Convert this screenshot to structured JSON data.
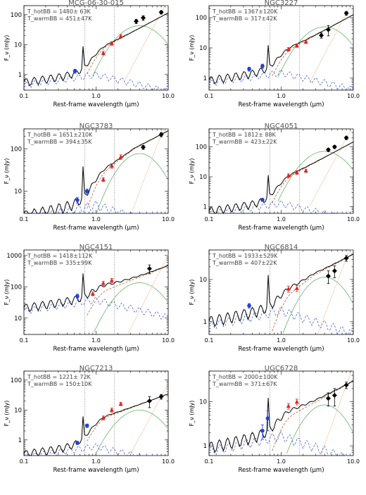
{
  "chart_data": [
    {
      "type": "line",
      "title": "MCG-06-30-015",
      "xlabel": "Rest-frame wavelength (μm)",
      "ylabel": "F_ν (mJy)",
      "xscale": "log",
      "yscale": "log",
      "xlim": [
        0.1,
        10.0
      ],
      "ylim": [
        0.3,
        200
      ],
      "yticks": [
        1,
        10,
        100
      ],
      "vlines": [
        0.7,
        1.8
      ],
      "annotation": [
        "T_hotBB = 1480± 63K",
        "T_warmBB = 451±47K"
      ],
      "observed": {
        "blue": [
          {
            "x": 0.51,
            "y": 1.3,
            "err": 0.2
          }
        ],
        "red": [
          {
            "x": 1.26,
            "y": 5.2,
            "err": 0.7
          },
          {
            "x": 1.65,
            "y": 11,
            "err": 1.5
          },
          {
            "x": 2.2,
            "y": 19,
            "err": 2.5
          }
        ],
        "black": [
          {
            "x": 3.6,
            "y": 60,
            "err": 10
          },
          {
            "x": 4.5,
            "y": 78,
            "err": 14
          },
          {
            "x": 8.0,
            "y": 120,
            "err": 15
          }
        ]
      }
    },
    {
      "type": "line",
      "title": "NGC3227",
      "xlabel": "Rest-frame wavelength (μm)",
      "ylabel": "F_ν (mJy)",
      "xscale": "log",
      "yscale": "log",
      "xlim": [
        0.1,
        10.0
      ],
      "ylim": [
        0.4,
        250
      ],
      "yticks": [
        1,
        10,
        100
      ],
      "vlines": [
        0.7,
        1.8
      ],
      "annotation": [
        "T_hotBB = 1367±120K",
        "T_warmBB = 317±42K"
      ],
      "observed": {
        "blue": [
          {
            "x": 0.36,
            "y": 2.0,
            "err": 0.3
          },
          {
            "x": 0.55,
            "y": 2.5,
            "err": 0.4
          }
        ],
        "red": [
          {
            "x": 1.26,
            "y": 9,
            "err": 1.2
          },
          {
            "x": 1.65,
            "y": 12,
            "err": 1.6
          },
          {
            "x": 2.2,
            "y": 16,
            "err": 2
          }
        ],
        "black": [
          {
            "x": 3.6,
            "y": 26,
            "err": 5
          },
          {
            "x": 4.5,
            "y": 40,
            "err": 15
          },
          {
            "x": 8.0,
            "y": 140,
            "err": 20
          }
        ]
      }
    },
    {
      "type": "line",
      "title": "NGC3783",
      "xlabel": "Rest-frame wavelength (μm)",
      "ylabel": "F_ν (mJy)",
      "xscale": "log",
      "yscale": "log",
      "xlim": [
        0.1,
        10.0
      ],
      "ylim": [
        3,
        300
      ],
      "yticks": [
        10,
        100
      ],
      "vlines": [
        0.7,
        1.8
      ],
      "annotation": [
        "T_hotBB = 1651±210K",
        "T_warmBB = 394±35K"
      ],
      "observed": {
        "blue": [
          {
            "x": 0.55,
            "y": 6.2,
            "err": 1.0
          },
          {
            "x": 0.75,
            "y": 10,
            "err": 1.2
          }
        ],
        "red": [
          {
            "x": 1.26,
            "y": 19,
            "err": 2
          },
          {
            "x": 1.65,
            "y": 40,
            "err": 5
          },
          {
            "x": 2.2,
            "y": 65,
            "err": 8
          }
        ],
        "black": [
          {
            "x": 4.5,
            "y": 110,
            "err": 12
          },
          {
            "x": 8.0,
            "y": 220,
            "err": 25
          }
        ]
      }
    },
    {
      "type": "line",
      "title": "NGC4051",
      "xlabel": "Rest-frame wavelength (μm)",
      "ylabel": "F_ν (mJy)",
      "xscale": "log",
      "yscale": "log",
      "xlim": [
        0.1,
        10.0
      ],
      "ylim": [
        0.6,
        400
      ],
      "yticks": [
        1,
        10,
        100
      ],
      "vlines": [
        0.7,
        1.8
      ],
      "annotation": [
        "T_hotBB = 1812± 88K",
        "T_warmBB = 423±22K"
      ],
      "observed": {
        "blue": [
          {
            "x": 0.55,
            "y": 1.7,
            "err": 0.2
          }
        ],
        "red": [
          {
            "x": 1.26,
            "y": 11,
            "err": 1.5
          },
          {
            "x": 1.65,
            "y": 14,
            "err": 2
          },
          {
            "x": 2.2,
            "y": 16,
            "err": 2
          }
        ],
        "black": [
          {
            "x": 4.5,
            "y": 80,
            "err": 10
          },
          {
            "x": 5.5,
            "y": 100,
            "err": 12
          },
          {
            "x": 8.0,
            "y": 200,
            "err": 25
          }
        ]
      }
    },
    {
      "type": "line",
      "title": "NGC4151",
      "xlabel": "Rest-frame wavelength (μm)",
      "ylabel": "F_ν (mJy)",
      "xscale": "log",
      "yscale": "log",
      "xlim": [
        0.1,
        10.0
      ],
      "ylim": [
        3,
        1500
      ],
      "yticks": [
        10,
        100,
        1000
      ],
      "vlines": [
        0.7,
        1.8
      ],
      "annotation": [
        "T_hotBB = 1418±112K",
        "T_warmBB = 335±99K"
      ],
      "observed": {
        "blue": [
          {
            "x": 0.55,
            "y": 50,
            "err": 8
          }
        ],
        "red": [
          {
            "x": 0.9,
            "y": 60,
            "err": 8
          },
          {
            "x": 1.26,
            "y": 130,
            "err": 20
          },
          {
            "x": 1.65,
            "y": 160,
            "err": 25
          }
        ],
        "black": [
          {
            "x": 5.5,
            "y": 380,
            "err": 120
          }
        ]
      }
    },
    {
      "type": "line",
      "title": "NGC6814",
      "xlabel": "Rest-frame wavelength (μm)",
      "ylabel": "F_ν (mJy)",
      "xscale": "log",
      "yscale": "log",
      "xlim": [
        0.1,
        10.0
      ],
      "ylim": [
        0.5,
        50
      ],
      "yticks": [
        1,
        10
      ],
      "vlines": [
        0.7,
        1.8
      ],
      "annotation": [
        "T_hotBB = 1933±529K",
        "T_warmBB = 407±22K"
      ],
      "observed": {
        "blue": [
          {
            "x": 0.36,
            "y": 2.4,
            "err": 0.3
          }
        ],
        "red": [
          {
            "x": 1.26,
            "y": 6.0,
            "err": 1
          },
          {
            "x": 1.65,
            "y": 6.2,
            "err": 1
          }
        ],
        "black": [
          {
            "x": 4.5,
            "y": 12,
            "err": 4
          },
          {
            "x": 5.5,
            "y": 16,
            "err": 5
          },
          {
            "x": 8.0,
            "y": 32,
            "err": 5
          }
        ]
      }
    },
    {
      "type": "line",
      "title": "NGC7213",
      "xlabel": "Rest-frame wavelength (μm)",
      "ylabel": "F_ν (mJy)",
      "xscale": "log",
      "yscale": "log",
      "xlim": [
        0.1,
        10.0
      ],
      "ylim": [
        0.3,
        200
      ],
      "yticks": [
        1,
        10,
        100
      ],
      "vlines": [
        0.7,
        1.8
      ],
      "annotation": [
        "T_hotBB = 1221± 72K",
        "T_warmBB = 150±10K"
      ],
      "observed": {
        "blue": [
          {
            "x": 0.55,
            "y": 0.8,
            "err": 0.1
          },
          {
            "x": 0.75,
            "y": 3.0,
            "err": 0.4
          }
        ],
        "red": [
          {
            "x": 1.26,
            "y": 5.5,
            "err": 0.8
          },
          {
            "x": 1.65,
            "y": 10,
            "err": 1.5
          },
          {
            "x": 2.2,
            "y": 16,
            "err": 2
          }
        ],
        "black": [
          {
            "x": 5.5,
            "y": 20,
            "err": 8
          },
          {
            "x": 8.0,
            "y": 28,
            "err": 5
          }
        ]
      }
    },
    {
      "type": "line",
      "title": "UGC6728",
      "xlabel": "Rest-frame wavelength (μm)",
      "ylabel": "F_ν (mJy)",
      "xscale": "log",
      "yscale": "log",
      "xlim": [
        0.1,
        10.0
      ],
      "ylim": [
        0.6,
        50
      ],
      "yticks": [
        1,
        10
      ],
      "vlines": [
        0.7,
        1.8
      ],
      "annotation": [
        "T_hotBB = 2000±100K",
        "T_warmBB = 371±67K"
      ],
      "observed": {
        "blue": [
          {
            "x": 0.55,
            "y": 2.2,
            "err": 0.8
          },
          {
            "x": 0.65,
            "y": 4.2,
            "err": 2
          }
        ],
        "red": [
          {
            "x": 1.26,
            "y": 8,
            "err": 1.2
          },
          {
            "x": 1.65,
            "y": 10,
            "err": 1.5
          }
        ],
        "black": [
          {
            "x": 4.5,
            "y": 12,
            "err": 4
          },
          {
            "x": 5.5,
            "y": 14,
            "err": 6
          },
          {
            "x": 8.0,
            "y": 24,
            "err": 4
          }
        ]
      }
    }
  ]
}
